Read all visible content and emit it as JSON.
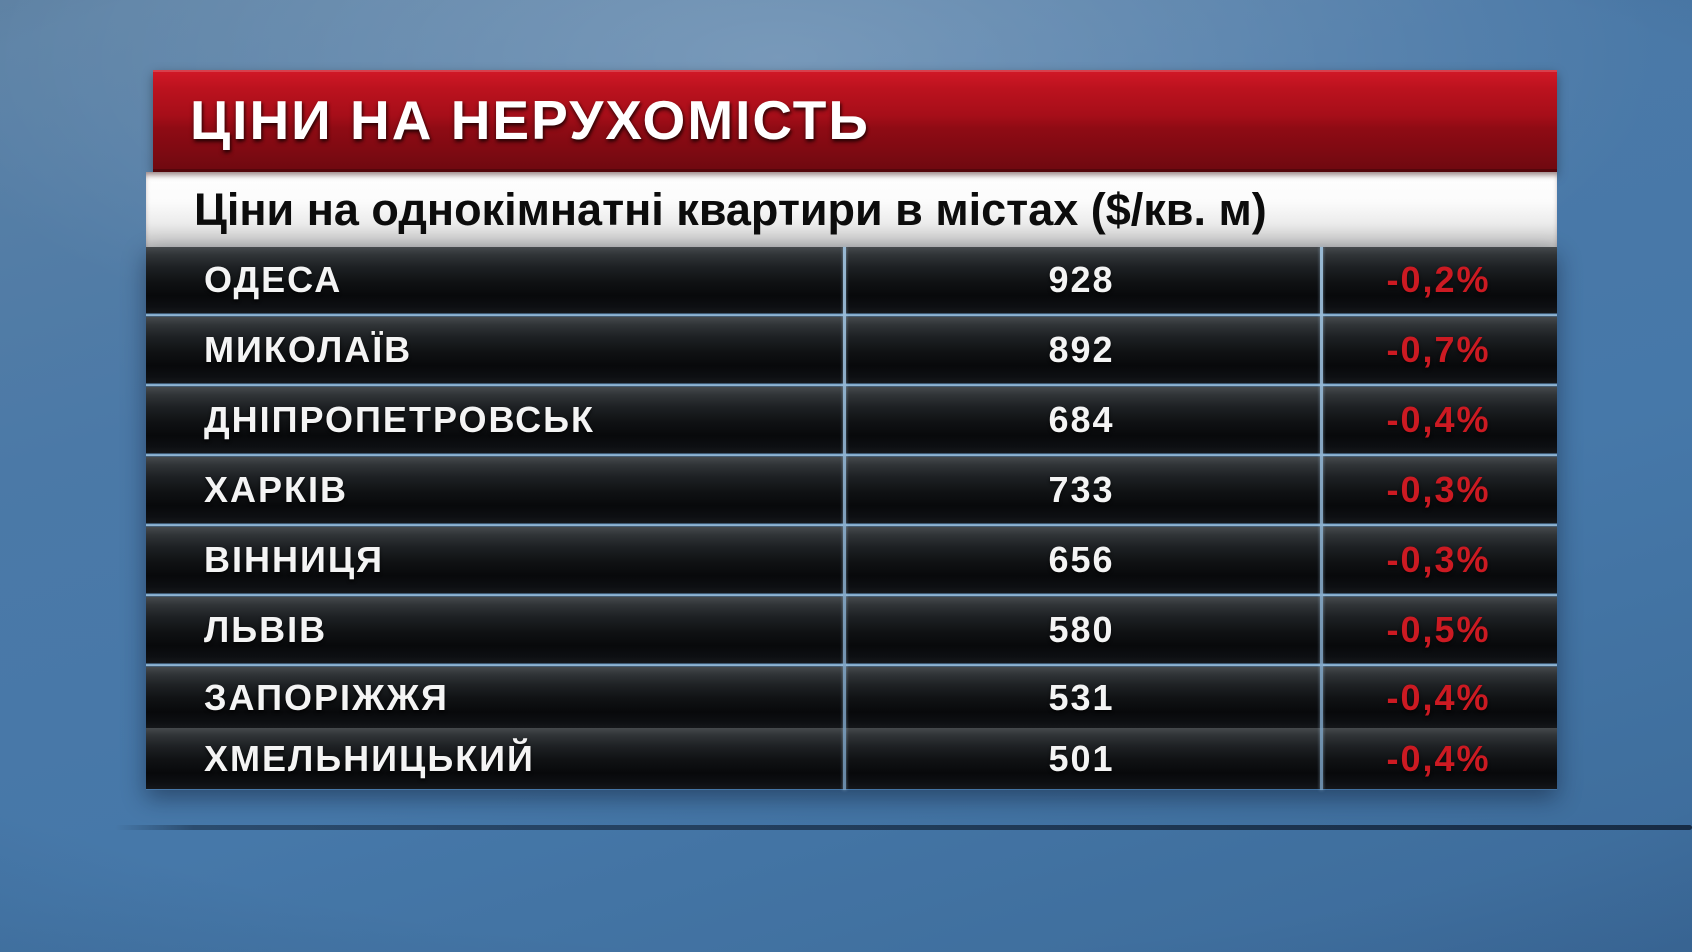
{
  "header": {
    "title": "ЦІНИ НА НЕРУХОМІСТЬ",
    "subtitle": "Ціни на однокімнатні квартири в містах ($/кв. м)"
  },
  "chart_data": {
    "type": "table",
    "title": "ЦІНИ НА НЕРУХОМІСТЬ",
    "subtitle": "Ціни на однокімнатні квартири в містах ($/кв. м)",
    "unit": "$/кв. м",
    "rows": [
      {
        "city": "ОДЕСА",
        "price": "928",
        "change": "-0,2%"
      },
      {
        "city": "МИКОЛАЇВ",
        "price": "892",
        "change": "-0,7%"
      },
      {
        "city": "ДНІПРОПЕТРОВСЬК",
        "price": "684",
        "change": "-0,4%"
      },
      {
        "city": "ХАРКІВ",
        "price": "733",
        "change": "-0,3%"
      },
      {
        "city": "ВІННИЦЯ",
        "price": "656",
        "change": "-0,3%"
      },
      {
        "city": "ЛЬВІВ",
        "price": "580",
        "change": "-0,5%"
      },
      {
        "city": "ЗАПОРІЖЖЯ",
        "price": "531",
        "change": "-0,4%"
      },
      {
        "city": "ХМЕЛЬНИЦЬКИЙ",
        "price": "501",
        "change": "-0,4%"
      }
    ]
  },
  "colors": {
    "banner_red": "#a60e19",
    "change_red": "#cc1a22",
    "separator_blue": "#8fb8d9",
    "background_blue": "#4a78a6",
    "row_dark": "#101214"
  }
}
